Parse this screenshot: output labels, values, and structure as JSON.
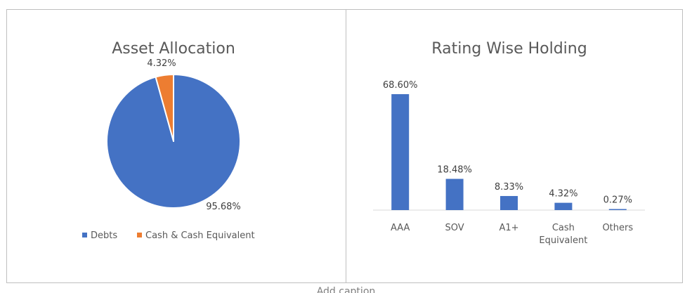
{
  "chart_data": [
    {
      "type": "pie",
      "title": "Asset Allocation",
      "categories": [
        "Debts",
        "Cash & Cash Equivalent"
      ],
      "values": [
        95.68,
        4.32
      ],
      "data_labels": [
        "95.68%",
        "4.32%"
      ],
      "colors": [
        "#4472c4",
        "#ed7d31"
      ],
      "legend": {
        "placement": "bottom",
        "entries": [
          "Debts",
          "Cash & Cash Equivalent"
        ]
      }
    },
    {
      "type": "bar",
      "title": "Rating Wise Holding",
      "categories": [
        "AAA",
        "SOV",
        "A1+",
        "Cash Equivalent",
        "Others"
      ],
      "category_lines": [
        [
          "AAA"
        ],
        [
          "SOV"
        ],
        [
          "A1+"
        ],
        [
          "Cash",
          "Equivalent"
        ],
        [
          "Others"
        ]
      ],
      "values": [
        68.6,
        18.48,
        8.33,
        4.32,
        0.27
      ],
      "data_labels": [
        "68.60%",
        "18.48%",
        "8.33%",
        "4.32%",
        "0.27%"
      ],
      "color": "#4472c4",
      "grid": false,
      "legend": "none"
    }
  ],
  "caption": "Add caption"
}
